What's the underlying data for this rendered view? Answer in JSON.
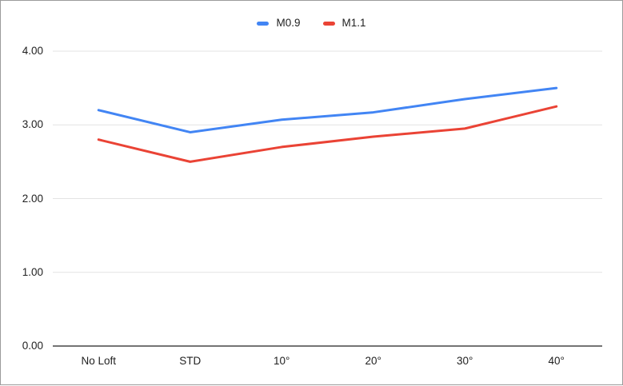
{
  "chart_data": {
    "type": "line",
    "title": "",
    "xlabel": "",
    "ylabel": "",
    "categories": [
      "No Loft",
      "STD",
      "10°",
      "20°",
      "30°",
      "40°"
    ],
    "series": [
      {
        "name": "M0.9",
        "color": "#4285f4",
        "values": [
          3.2,
          2.9,
          3.07,
          3.17,
          3.35,
          3.5
        ]
      },
      {
        "name": "M1.1",
        "color": "#ea4335",
        "values": [
          2.8,
          2.5,
          2.7,
          2.84,
          2.95,
          3.25
        ]
      }
    ],
    "ylim": [
      0,
      4
    ],
    "yticks": [
      {
        "value": 0,
        "label": "0.00"
      },
      {
        "value": 1,
        "label": "1.00"
      },
      {
        "value": 2,
        "label": "2.00"
      },
      {
        "value": 3,
        "label": "3.00"
      },
      {
        "value": 4,
        "label": "4.00"
      }
    ],
    "grid": true,
    "legend_position": "top"
  },
  "colors": {
    "background": "#ffffff",
    "frame_border": "#9b9b9b",
    "gridline": "#e3e3e3",
    "axis_line": "#747474",
    "tick_text": "#1f1f1f",
    "series_blue": "#4285f4",
    "series_red": "#ea4335"
  }
}
